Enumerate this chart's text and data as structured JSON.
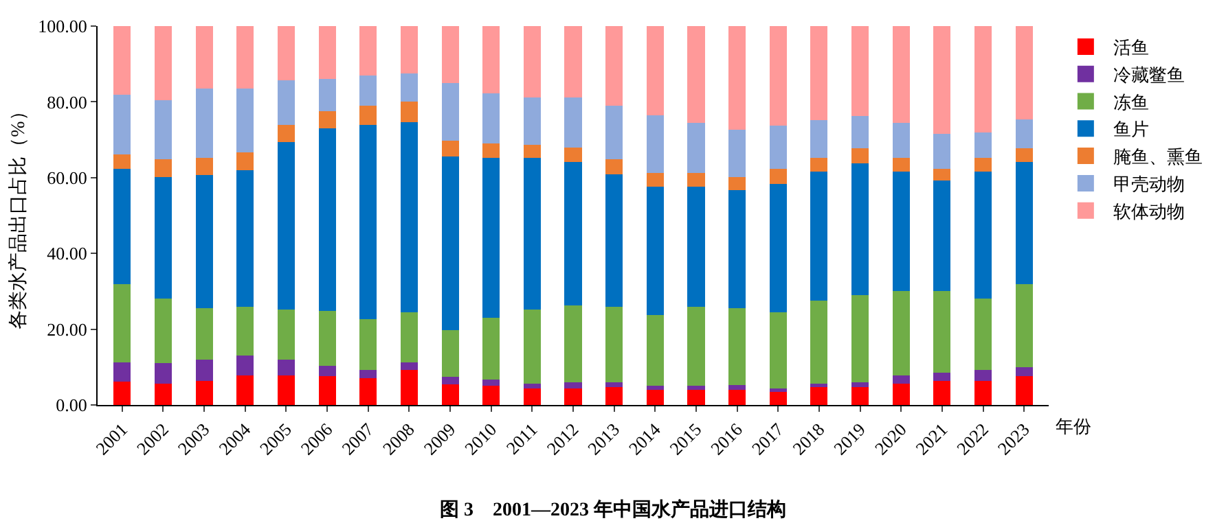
{
  "chart_data": {
    "type": "bar",
    "stacked": true,
    "title": "图 3　2001—2023 年中国水产品进口结构",
    "xlabel": "年份",
    "ylabel": "各类水产品出口占比（%）",
    "categories": [
      "2001",
      "2002",
      "2003",
      "2004",
      "2005",
      "2006",
      "2007",
      "2008",
      "2009",
      "2010",
      "2011",
      "2012",
      "2013",
      "2014",
      "2015",
      "2016",
      "2017",
      "2018",
      "2019",
      "2020",
      "2021",
      "2022",
      "2023"
    ],
    "ylim": [
      0,
      100
    ],
    "yticks": [
      {
        "value": 0,
        "label": "0.00"
      },
      {
        "value": 20,
        "label": "20.00"
      },
      {
        "value": 40,
        "label": "40.00"
      },
      {
        "value": 60,
        "label": "60.00"
      },
      {
        "value": 80,
        "label": "80.00"
      },
      {
        "value": 100,
        "label": "100.00"
      }
    ],
    "legend": "right",
    "series": [
      {
        "name": "活鱼",
        "color": "#ff0000",
        "values": [
          6.1,
          5.7,
          6.4,
          7.8,
          7.8,
          7.6,
          7.1,
          9.2,
          5.4,
          5.0,
          4.3,
          4.3,
          4.7,
          4.3,
          4.0,
          4.0,
          3.5,
          4.7,
          4.7,
          5.7,
          6.4,
          6.4,
          7.6
        ]
      },
      {
        "name": "冷藏鳖鱼",
        "color": "#7030a0",
        "values": [
          5.2,
          5.3,
          5.6,
          5.3,
          4.2,
          2.7,
          2.1,
          2.1,
          2.0,
          1.7,
          1.4,
          1.7,
          1.3,
          0.7,
          1.0,
          1.3,
          0.8,
          1.0,
          1.3,
          2.1,
          2.1,
          2.8,
          2.3
        ]
      },
      {
        "name": "冻鱼",
        "color": "#70ad47",
        "values": [
          20.6,
          17.0,
          13.5,
          12.8,
          13.1,
          14.5,
          13.5,
          13.1,
          12.4,
          16.3,
          19.4,
          20.2,
          19.9,
          18.7,
          20.9,
          20.2,
          20.1,
          21.9,
          23.0,
          22.3,
          21.6,
          18.8,
          22.0
        ]
      },
      {
        "name": "鱼片",
        "color": "#0070c0",
        "values": [
          30.4,
          32.2,
          35.2,
          36.1,
          44.3,
          48.2,
          51.3,
          50.3,
          45.7,
          42.2,
          40.1,
          37.9,
          35.0,
          34.0,
          31.8,
          31.2,
          34.0,
          34.0,
          34.8,
          31.5,
          29.1,
          33.6,
          32.2
        ]
      },
      {
        "name": "腌鱼、熏鱼",
        "color": "#ed7d31",
        "values": [
          3.9,
          4.6,
          4.5,
          4.6,
          4.6,
          4.6,
          5.0,
          5.3,
          4.3,
          3.9,
          3.5,
          3.9,
          3.9,
          3.6,
          3.6,
          3.5,
          3.9,
          3.6,
          3.9,
          3.6,
          3.1,
          3.6,
          3.6
        ]
      },
      {
        "name": "甲壳动物",
        "color": "#8faadc",
        "values": [
          15.7,
          15.7,
          18.4,
          17.0,
          11.7,
          8.5,
          7.9,
          7.5,
          15.2,
          13.1,
          12.4,
          13.1,
          14.2,
          15.2,
          13.1,
          12.4,
          11.4,
          9.9,
          8.5,
          9.2,
          9.2,
          6.7,
          7.7
        ]
      },
      {
        "name": "软体动物",
        "color": "#ff9999",
        "values": [
          18.1,
          19.5,
          16.4,
          16.4,
          14.3,
          13.9,
          13.1,
          12.5,
          15.0,
          17.8,
          18.9,
          18.9,
          21.0,
          23.5,
          25.6,
          27.4,
          26.3,
          24.9,
          23.8,
          25.6,
          28.5,
          28.1,
          24.6
        ]
      }
    ]
  }
}
